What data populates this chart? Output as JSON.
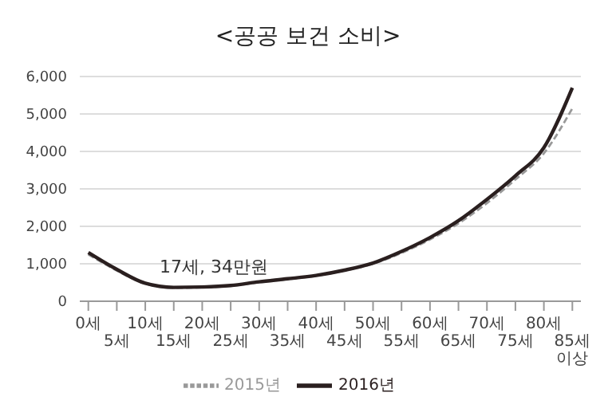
{
  "chart_data": {
    "type": "line",
    "title": "<공공 보건 소비>",
    "categories": [
      "0세",
      "5세",
      "10세",
      "15세",
      "20세",
      "25세",
      "30세",
      "35세",
      "40세",
      "45세",
      "50세",
      "55세",
      "60세",
      "65세",
      "70세",
      "75세",
      "80세",
      "85세 이상"
    ],
    "series": [
      {
        "name": "2015년",
        "color": "#999999",
        "line_style": "dashed",
        "values": [
          1250,
          820,
          470,
          360,
          370,
          410,
          510,
          590,
          680,
          820,
          1000,
          1290,
          1650,
          2080,
          2620,
          3250,
          3950,
          5150
        ]
      },
      {
        "name": "2016년",
        "color": "#2a1f1f",
        "line_style": "solid",
        "values": [
          1300,
          850,
          480,
          370,
          380,
          420,
          520,
          600,
          690,
          830,
          1020,
          1330,
          1700,
          2150,
          2720,
          3350,
          4100,
          5700
        ]
      }
    ],
    "ylim": [
      0,
      6000
    ],
    "yticks": [
      {
        "value": 0,
        "label": "0"
      },
      {
        "value": 1000,
        "label": "1,000"
      },
      {
        "value": 2000,
        "label": "2,000"
      },
      {
        "value": 3000,
        "label": "3,000"
      },
      {
        "value": 4000,
        "label": "4,000"
      },
      {
        "value": 5000,
        "label": "5,000"
      },
      {
        "value": 6000,
        "label": "6,000"
      }
    ],
    "grid": "y",
    "legend": "bottom",
    "marker": "none",
    "annotations": [
      "17세, 34만원"
    ]
  }
}
